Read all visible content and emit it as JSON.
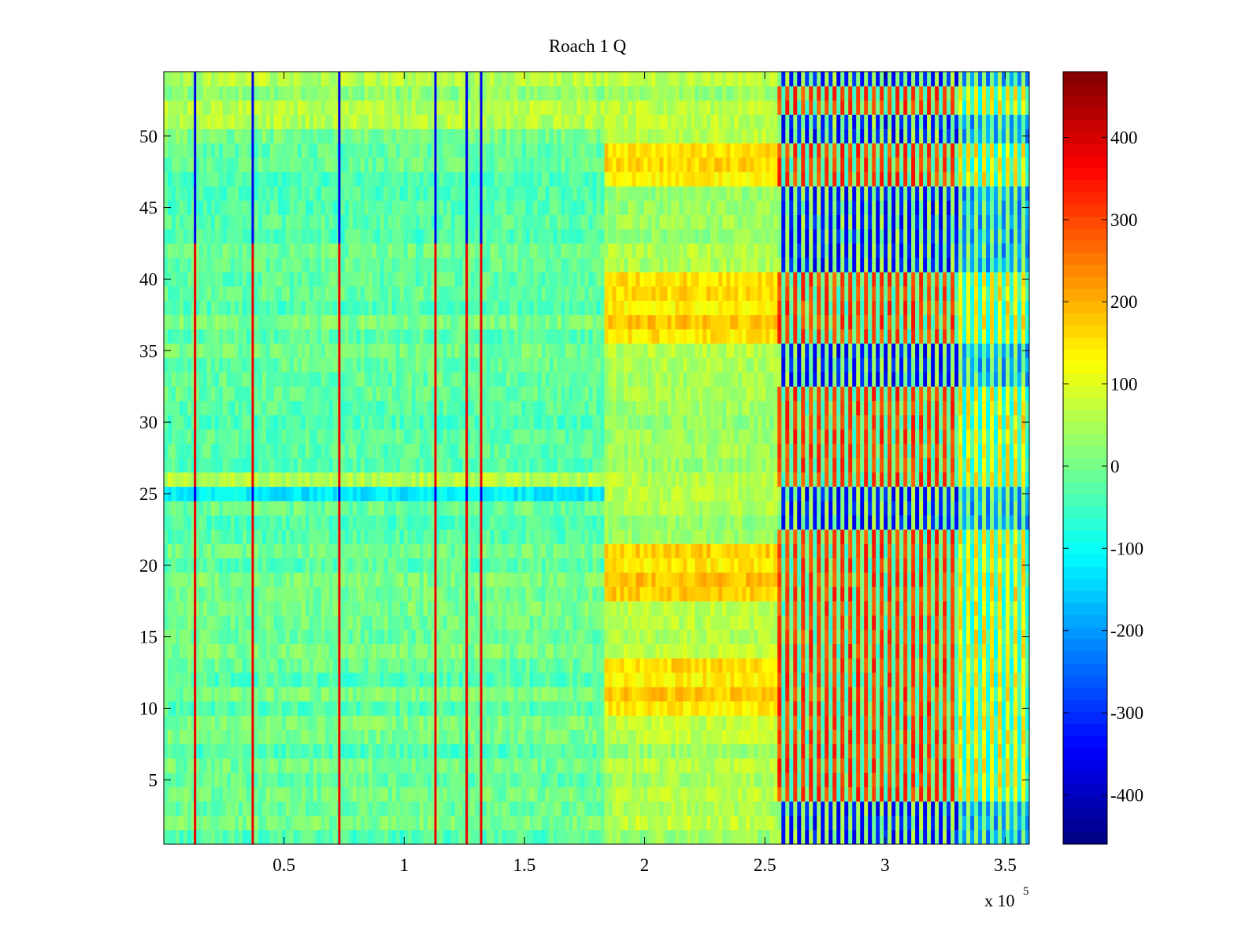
{
  "chart_data": {
    "type": "heatmap",
    "title": "Roach 1 Q",
    "xlabel": "",
    "ylabel": "",
    "x_exponent_label": "x 10",
    "x_exponent_power": "5",
    "xlim": [
      0,
      360000
    ],
    "ylim": [
      0.5,
      54.5
    ],
    "x_ticks": [
      50000,
      100000,
      150000,
      200000,
      250000,
      300000,
      350000
    ],
    "x_tick_labels": [
      "0.5",
      "1",
      "1.5",
      "2",
      "2.5",
      "3",
      "3.5"
    ],
    "y_ticks": [
      5,
      10,
      15,
      20,
      25,
      30,
      35,
      40,
      45,
      50
    ],
    "y_tick_labels": [
      "5",
      "10",
      "15",
      "20",
      "25",
      "30",
      "35",
      "40",
      "45",
      "50"
    ],
    "rows": 54,
    "colormap": "jet",
    "clim": [
      -460,
      480
    ],
    "colorbar": {
      "ticks": [
        -400,
        -300,
        -200,
        -100,
        0,
        100,
        200,
        300,
        400
      ],
      "tick_labels": [
        "-400",
        "-300",
        "-200",
        "-100",
        "0",
        "100",
        "200",
        "300",
        "400"
      ]
    },
    "segments": [
      {
        "x_range": [
          0,
          183000
        ],
        "typical_value": -20,
        "description": "low variance region, values near -100 to 100"
      },
      {
        "x_range": [
          183000,
          255000
        ],
        "typical_value": 80,
        "description": "moderately positive, strong rows 10-13, 18-21, 36-40, 47-49 at ~150-250"
      },
      {
        "x_range": [
          255000,
          330000
        ],
        "typical_value": 150,
        "description": "high oscillation, values from -400 to 450"
      },
      {
        "x_range": [
          330000,
          360000
        ],
        "typical_value": 50,
        "description": "moderate oscillation"
      }
    ],
    "vertical_spikes": [
      {
        "x": 13000,
        "description": "blue top rows, red lower rows"
      },
      {
        "x": 37000,
        "description": "blue top rows, red lower rows"
      },
      {
        "x": 73000,
        "description": "blue top rows, red lower rows"
      },
      {
        "x": 113000,
        "description": "blue top rows, red lower rows"
      },
      {
        "x": 126000,
        "description": "blue top rows, red lower rows"
      },
      {
        "x": 132000,
        "description": "blue top rows, red lower rows"
      }
    ]
  }
}
